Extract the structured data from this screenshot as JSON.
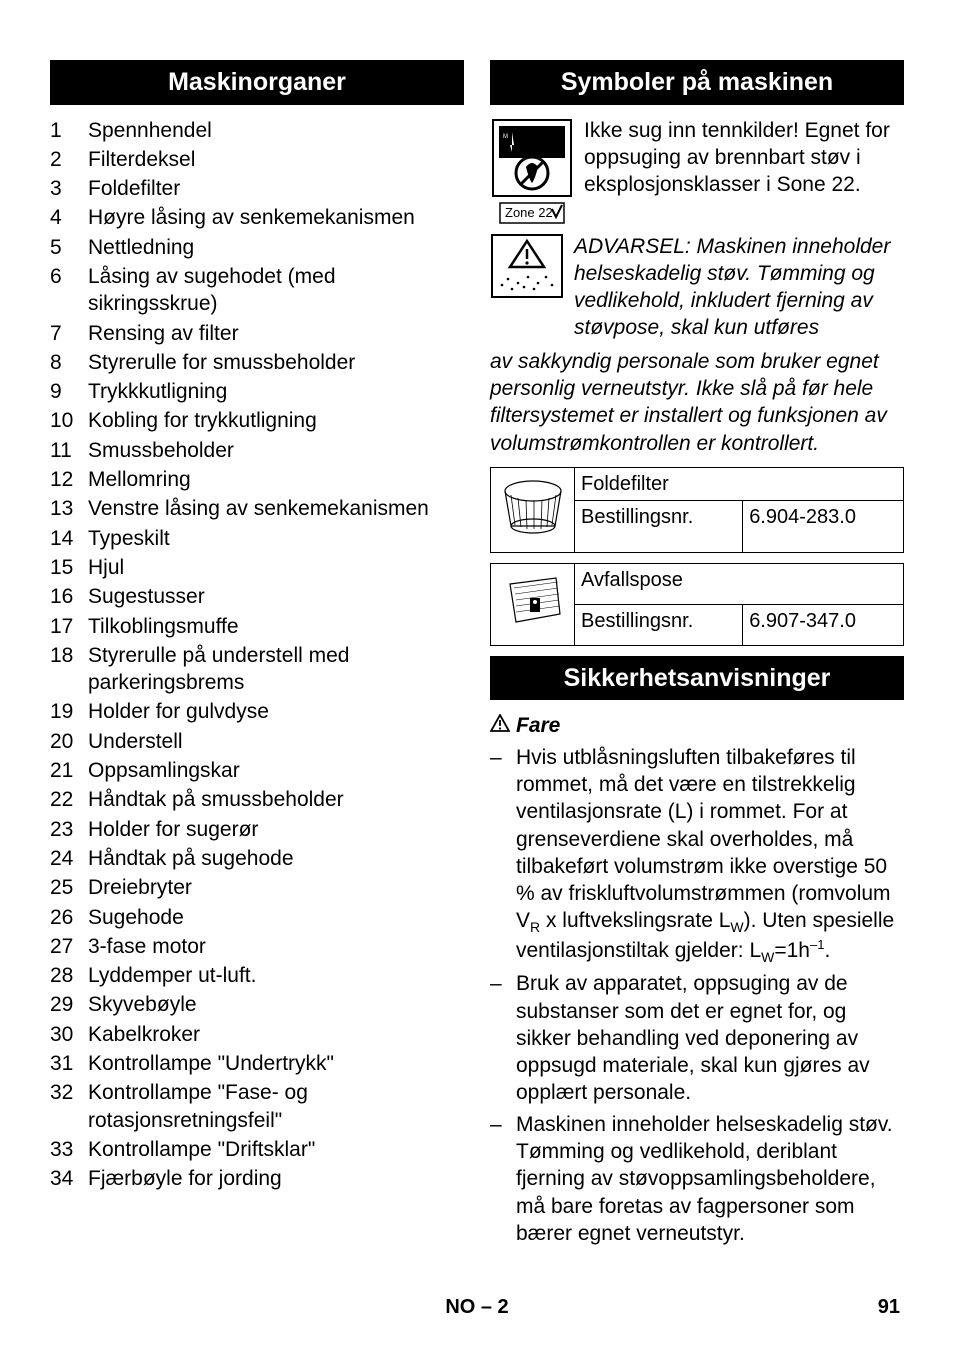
{
  "left": {
    "header": "Maskinorganer",
    "items": [
      "Spennhendel",
      "Filterdeksel",
      "Foldefilter",
      "Høyre låsing av senkemekanismen",
      "Nettledning",
      "Låsing av sugehodet (med sikringsskrue)",
      "Rensing av filter",
      "Styrerulle for smussbeholder",
      "Trykkkutligning",
      "Kobling for trykkutligning",
      "Smussbeholder",
      "Mellomring",
      "Venstre låsing av senkemekanismen",
      "Typeskilt",
      "Hjul",
      "Sugestusser",
      "Tilkoblingsmuffe",
      "Styrerulle på understell med parkeringsbrems",
      "Holder for gulvdyse",
      "Understell",
      "Oppsamlingskar",
      "Håndtak på smussbeholder",
      "Holder for sugerør",
      "Håndtak på sugehode",
      "Dreiebryter",
      "Sugehode",
      "3-fase motor",
      "Lyddemper ut-luft.",
      "Skyvebøyle",
      "Kabelkroker",
      "Kontrollampe \"Undertrykk\"",
      "Kontrollampe \"Fase- og rotasjonsretningsfeil\"",
      "Kontrollampe \"Driftsklar\"",
      "Fjærbøyle for jording"
    ]
  },
  "right": {
    "header_symbols": "Symboler på maskinen",
    "zone_text": "Ikke sug inn tennkilder! Egnet for oppsuging av brennbart støv i eksplosjonsklasser i Sone 22.",
    "zone_label": "Zone 22",
    "warning_text": "ADVARSEL: Maskinen inneholder helseskadelig støv. Tømming og vedlikehold, inkludert fjerning av støvpose, skal kun utføres av sakkyndig personale som bruker egnet personlig verneutstyr. Ikke slå på før hele filtersystemet er installert og funksjonen av volumstrømkontrollen er kontrollert.",
    "table1": {
      "name": "Foldefilter",
      "order_label": "Bestillingsnr.",
      "order_no": "6.904-283.0"
    },
    "table2": {
      "name": "Avfallspose",
      "order_label": "Bestillingsnr.",
      "order_no": "6.907-347.0"
    },
    "header_safety": "Sikkerhetsanvisninger",
    "fare": "Fare",
    "safety_items_html": [
      "Hvis utblåsningsluften tilbakeføres til rommet, må det være en tilstrekkelig ventilasjonsrate (L) i rommet. For at grenseverdiene skal overholdes, må tilbakeført volumstrøm ikke overstige 50 % av friskluftvolumstrømmen (romvolum V<span class=\"sub\">R</span> x luftvekslingsrate L<span class=\"sub\">W</span>). Uten spesielle ventilasjonstiltak gjelder: L<span class=\"sub\">W</span>=1h<span class=\"sup\">–1</span>.",
      "Bruk av apparatet, oppsuging av de substanser som det er egnet for, og sikker behandling ved deponering av oppsugd materiale, skal kun gjøres av opplært personale.",
      "Maskinen inneholder helseskadelig støv. Tømming og vedlikehold, deriblant fjerning av støvoppsamlingsbeholdere, må bare foretas av fagpersoner som bærer egnet verneutstyr."
    ]
  },
  "footer": {
    "lang": "NO – 2",
    "page": "91"
  }
}
